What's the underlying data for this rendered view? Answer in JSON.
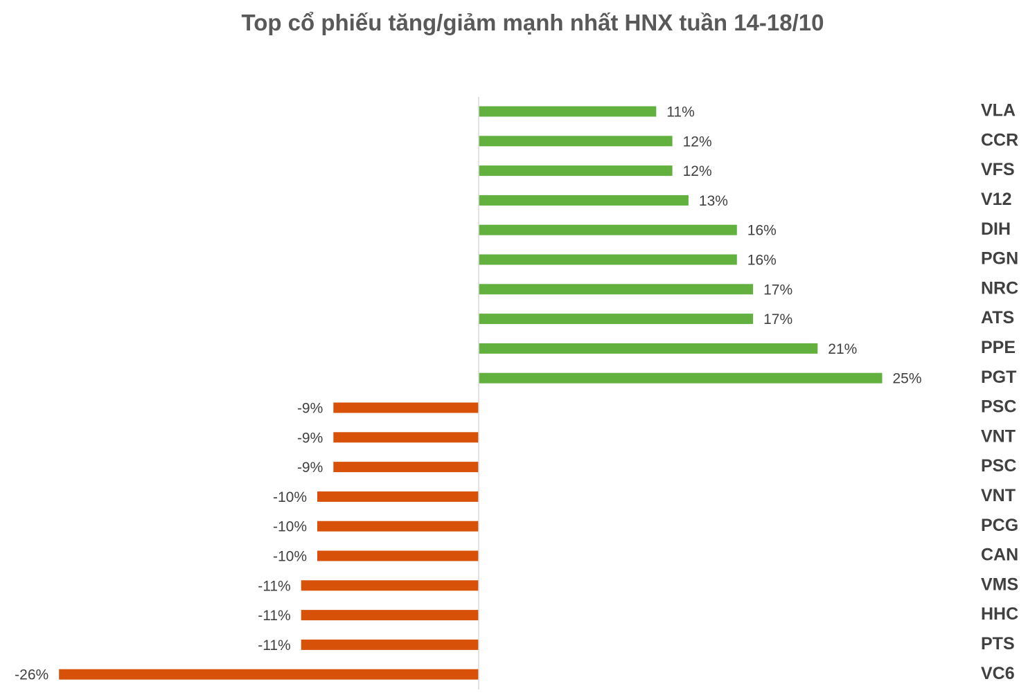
{
  "title": "Top cổ phiếu tăng/giảm mạnh nhất HNX tuần 14-18/10",
  "chart_data": {
    "type": "bar",
    "orientation": "horizontal",
    "title": "Top cổ phiếu tăng/giảm mạnh nhất HNX tuần 14-18/10",
    "xlabel": "",
    "ylabel": "",
    "categories": [
      "VLA",
      "CCR",
      "VFS",
      "V12",
      "DIH",
      "PGN",
      "NRC",
      "ATS",
      "PPE",
      "PGT",
      "PSC",
      "VNT",
      "PSC",
      "VNT",
      "PCG",
      "CAN",
      "VMS",
      "HHC",
      "PTS",
      "VC6"
    ],
    "values": [
      11,
      12,
      12,
      13,
      16,
      16,
      17,
      17,
      21,
      25,
      -9,
      -9,
      -9,
      -10,
      -10,
      -10,
      -11,
      -11,
      -11,
      -26
    ],
    "labels": [
      "11%",
      "12%",
      "12%",
      "13%",
      "16%",
      "16%",
      "17%",
      "17%",
      "21%",
      "25%",
      "-9%",
      "-9%",
      "-9%",
      "-10%",
      "-10%",
      "-10%",
      "-11%",
      "-11%",
      "-11%",
      "-26%"
    ],
    "xlim": [
      -26,
      25
    ],
    "grid": false,
    "legend": "none",
    "colors": {
      "positive": "#62B03E",
      "negative": "#D75108",
      "axis": "#D9D9D9",
      "label": "#404040",
      "title": "#595959"
    }
  }
}
